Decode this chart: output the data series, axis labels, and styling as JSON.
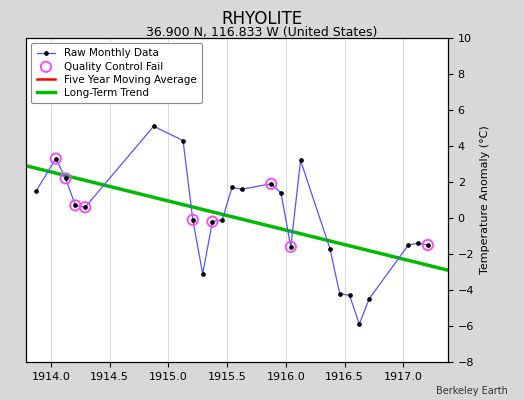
{
  "title": "RHYOLITE",
  "subtitle": "36.900 N, 116.833 W (United States)",
  "credit": "Berkeley Earth",
  "ylabel": "Temperature Anomaly (°C)",
  "ylim": [
    -8,
    10
  ],
  "xlim": [
    1913.79,
    1917.38
  ],
  "xticks": [
    1914,
    1914.5,
    1915,
    1915.5,
    1916,
    1916.5,
    1917
  ],
  "yticks": [
    -8,
    -6,
    -4,
    -2,
    0,
    2,
    4,
    6,
    8,
    10
  ],
  "raw_x": [
    1913.875,
    1914.042,
    1914.125,
    1914.208,
    1914.292,
    1914.875,
    1915.125,
    1915.208,
    1915.292,
    1915.375,
    1915.458,
    1915.542,
    1915.625,
    1915.875,
    1915.958,
    1916.042,
    1916.125,
    1916.375,
    1916.458,
    1916.542,
    1916.625,
    1916.708,
    1917.042,
    1917.125,
    1917.208
  ],
  "raw_y": [
    1.5,
    3.3,
    2.2,
    0.7,
    0.6,
    5.1,
    4.3,
    -0.1,
    -3.1,
    -0.2,
    -0.1,
    1.7,
    1.6,
    1.9,
    1.4,
    -1.6,
    3.2,
    -1.7,
    -4.2,
    -4.3,
    -5.9,
    -4.5,
    -1.5,
    -1.4,
    -1.5
  ],
  "qc_fail_x": [
    1914.042,
    1914.125,
    1914.208,
    1914.292,
    1915.208,
    1915.375,
    1915.875,
    1916.042,
    1917.208
  ],
  "qc_fail_y": [
    3.3,
    2.2,
    0.7,
    0.6,
    -0.1,
    -0.2,
    1.9,
    -1.6,
    -1.5
  ],
  "trend_x": [
    1913.79,
    1917.38
  ],
  "trend_y": [
    2.9,
    -2.9
  ],
  "raw_line_color": "#5555ff",
  "raw_marker_color": "#000000",
  "qc_color": "#ff44ff",
  "trend_color": "#00bb00",
  "ma_color": "#ff0000",
  "bg_color": "#d8d8d8",
  "plot_bg_color": "#ffffff",
  "grid_color": "#cccccc",
  "title_fontsize": 12,
  "subtitle_fontsize": 9,
  "label_fontsize": 8,
  "tick_fontsize": 8
}
